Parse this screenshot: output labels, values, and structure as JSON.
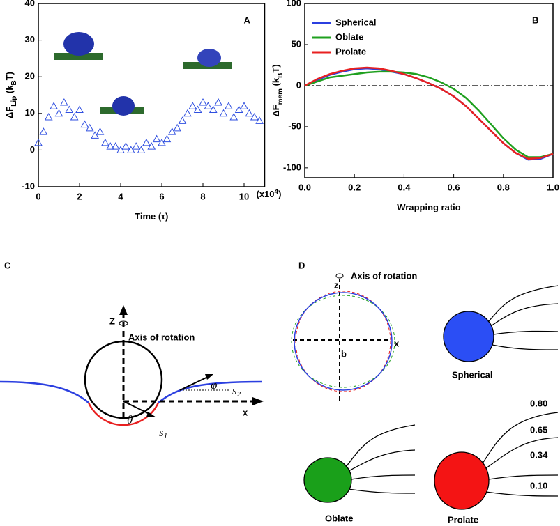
{
  "chart_data": [
    {
      "type": "scatter",
      "panel": "A",
      "xlabel": [
        "Time (τ)"
      ],
      "xscale_note": [
        "(x10",
        "4",
        ")"
      ],
      "ylabel": [
        "ΔF",
        "Lip",
        " (k",
        "B",
        "T)"
      ],
      "xlim": [
        0,
        11
      ],
      "xticks": [
        0,
        2,
        4,
        6,
        8,
        10
      ],
      "ylim": [
        -10,
        40
      ],
      "yticks": [
        -10,
        0,
        10,
        20,
        30,
        40
      ],
      "color": "#2f4fe0",
      "x": [
        0,
        0.25,
        0.5,
        0.75,
        1,
        1.25,
        1.5,
        1.75,
        2,
        2.25,
        2.5,
        2.75,
        3,
        3.25,
        3.5,
        3.75,
        4,
        4.25,
        4.5,
        4.75,
        5,
        5.25,
        5.5,
        5.75,
        6,
        6.25,
        6.5,
        6.75,
        7,
        7.25,
        7.5,
        7.75,
        8,
        8.25,
        8.5,
        8.75,
        9,
        9.25,
        9.5,
        9.75,
        10,
        10.25,
        10.5,
        10.75
      ],
      "values": [
        2,
        5,
        9,
        12,
        10,
        13,
        11,
        9,
        11,
        7,
        6,
        4,
        5,
        2,
        1,
        1,
        0,
        1,
        0,
        1,
        0,
        2,
        1,
        3,
        2,
        3,
        5,
        6,
        8,
        10,
        12,
        11,
        13,
        12,
        11,
        13,
        10,
        12,
        9,
        11,
        12,
        10,
        9,
        8
      ]
    },
    {
      "type": "line",
      "panel": "B",
      "xlabel": [
        "Wrapping ratio"
      ],
      "ylabel": [
        "ΔF",
        "mem",
        " (k",
        "B",
        "T)"
      ],
      "xlim": [
        0,
        1
      ],
      "xticks": [
        {
          "value": 0,
          "label": "0.0"
        },
        0.2,
        0.4,
        0.6,
        0.8,
        {
          "value": 1,
          "label": "1.0"
        }
      ],
      "ylim": [
        -112,
        100
      ],
      "yticks": [
        -100,
        -50,
        0,
        50,
        100
      ],
      "reference_line": 0,
      "legend": "upper left",
      "x": [
        0,
        0.05,
        0.1,
        0.15,
        0.2,
        0.25,
        0.3,
        0.35,
        0.4,
        0.45,
        0.5,
        0.55,
        0.6,
        0.65,
        0.7,
        0.75,
        0.8,
        0.85,
        0.9,
        0.95,
        1
      ],
      "series": [
        {
          "name": "Spherical",
          "color": "#2b3fe0",
          "values": [
            0,
            7,
            13,
            17,
            20,
            21,
            20,
            17,
            14,
            9,
            3,
            -4,
            -13,
            -25,
            -40,
            -55,
            -70,
            -82,
            -90,
            -89,
            -83
          ]
        },
        {
          "name": "Oblate",
          "color": "#1fa01f",
          "values": [
            0,
            5,
            10,
            12,
            14,
            16,
            17,
            17,
            16,
            14,
            10,
            4,
            -4,
            -15,
            -30,
            -47,
            -64,
            -78,
            -87,
            -87,
            -83
          ]
        },
        {
          "name": "Prolate",
          "color": "#e82020",
          "values": [
            0,
            8,
            14,
            18,
            21,
            22,
            21,
            18,
            14,
            9,
            3,
            -4,
            -13,
            -25,
            -40,
            -55,
            -70,
            -82,
            -89,
            -88,
            -83
          ]
        }
      ]
    }
  ],
  "panel_c": {
    "letter": "C",
    "z": "Z",
    "axis": "Axis of rotation",
    "x": "x",
    "theta": "θ",
    "phi": "φ",
    "s1": [
      "s",
      "1"
    ],
    "s2": [
      "s",
      "2"
    ]
  },
  "panel_d": {
    "letter": "D",
    "z": "z",
    "axis": "Axis of rotation",
    "x": "x",
    "b": "b",
    "spherical": "Spherical",
    "oblate": "Oblate",
    "prolate": "Prolate",
    "ratios": [
      "0.80",
      "0.65",
      "0.34",
      "0.10"
    ]
  }
}
